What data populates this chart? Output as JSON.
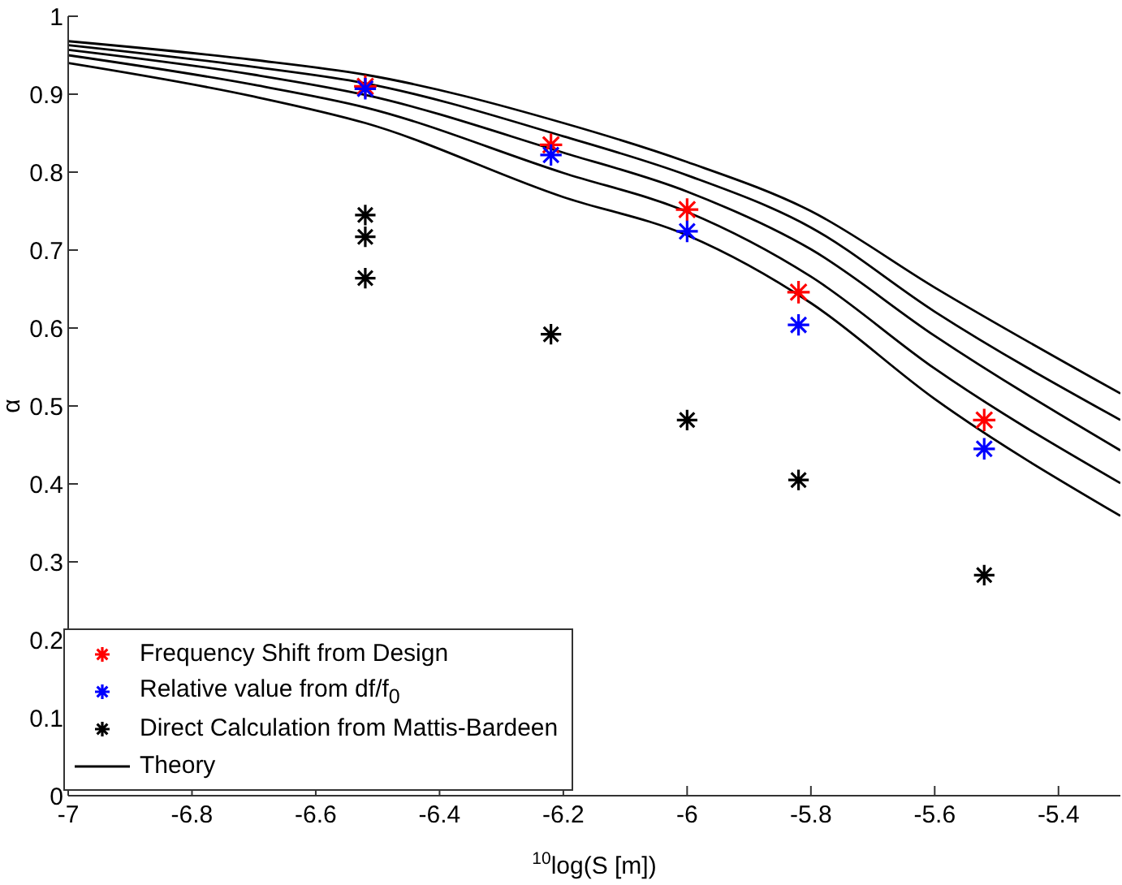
{
  "chart_data": {
    "type": "scatter",
    "xlabel": "$^{10}$log(S [m])",
    "ylabel": "α",
    "xlim": [
      -7,
      -5.3
    ],
    "xticks": [
      -7,
      -6.8,
      -6.6,
      -6.4,
      -6.2,
      -6,
      -5.8,
      -5.6,
      -5.4
    ],
    "ylim": [
      0,
      1
    ],
    "yticks": [
      0,
      0.1,
      0.2,
      0.3,
      0.4,
      0.5,
      0.6,
      0.7,
      0.8,
      0.9,
      1
    ],
    "grid": false,
    "legend": "bottom left",
    "series": [
      {
        "type": "scatter",
        "name": "Frequency Shift from Design",
        "color": "#ff0000",
        "marker": "cross",
        "x": [
          -6.52,
          -6.22,
          -6.0,
          -5.82,
          -5.52
        ],
        "values": [
          0.91,
          0.835,
          0.752,
          0.646,
          0.482
        ]
      },
      {
        "type": "scatter",
        "name": "Relative value from df/f$_{0}$",
        "color": "#0000ff",
        "marker": "cross",
        "x": [
          -6.52,
          -6.22,
          -6.0,
          -5.82,
          -5.52
        ],
        "values": [
          0.907,
          0.822,
          0.724,
          0.604,
          0.445
        ]
      },
      {
        "type": "scatter",
        "name": "Direct Calculation from Mattis-Bardeen",
        "color": "#000000",
        "marker": "cross",
        "x": [
          -6.52,
          -6.52,
          -6.52,
          -6.22,
          -6.0,
          -5.82,
          -5.52
        ],
        "values": [
          0.745,
          0.717,
          0.664,
          0.592,
          0.482,
          0.405,
          0.283
        ]
      },
      {
        "type": "line",
        "name": "Theory",
        "color": "#000000",
        "marker": "none",
        "x": [
          -7,
          -6.7,
          -6.52,
          -6.2,
          -6.0,
          -5.8,
          -5.6,
          -5.3
        ],
        "values": [
          0.968,
          0.944,
          0.925,
          0.863,
          0.813,
          0.75,
          0.652,
          0.516
        ]
      },
      {
        "type": "line",
        "color": "#000000",
        "marker": "none",
        "x": [
          -7,
          -6.7,
          -6.52,
          -6.2,
          -6.0,
          -5.8,
          -5.6,
          -5.3
        ],
        "values": [
          0.963,
          0.935,
          0.914,
          0.846,
          0.796,
          0.729,
          0.621,
          0.482
        ]
      },
      {
        "type": "line",
        "color": "#000000",
        "marker": "none",
        "x": [
          -7,
          -6.7,
          -6.52,
          -6.2,
          -6.0,
          -5.8,
          -5.6,
          -5.3
        ],
        "values": [
          0.957,
          0.925,
          0.899,
          0.825,
          0.775,
          0.701,
          0.59,
          0.443
        ]
      },
      {
        "type": "line",
        "color": "#000000",
        "marker": "none",
        "x": [
          -7,
          -6.7,
          -6.52,
          -6.2,
          -6.0,
          -5.8,
          -5.6,
          -5.3
        ],
        "values": [
          0.95,
          0.912,
          0.883,
          0.799,
          0.749,
          0.666,
          0.548,
          0.401
        ]
      },
      {
        "type": "line",
        "color": "#000000",
        "marker": "none",
        "x": [
          -7,
          -6.7,
          -6.52,
          -6.2,
          -6.0,
          -5.8,
          -5.6,
          -5.3
        ],
        "values": [
          0.94,
          0.897,
          0.863,
          0.768,
          0.719,
          0.632,
          0.509,
          0.359
        ]
      }
    ]
  }
}
